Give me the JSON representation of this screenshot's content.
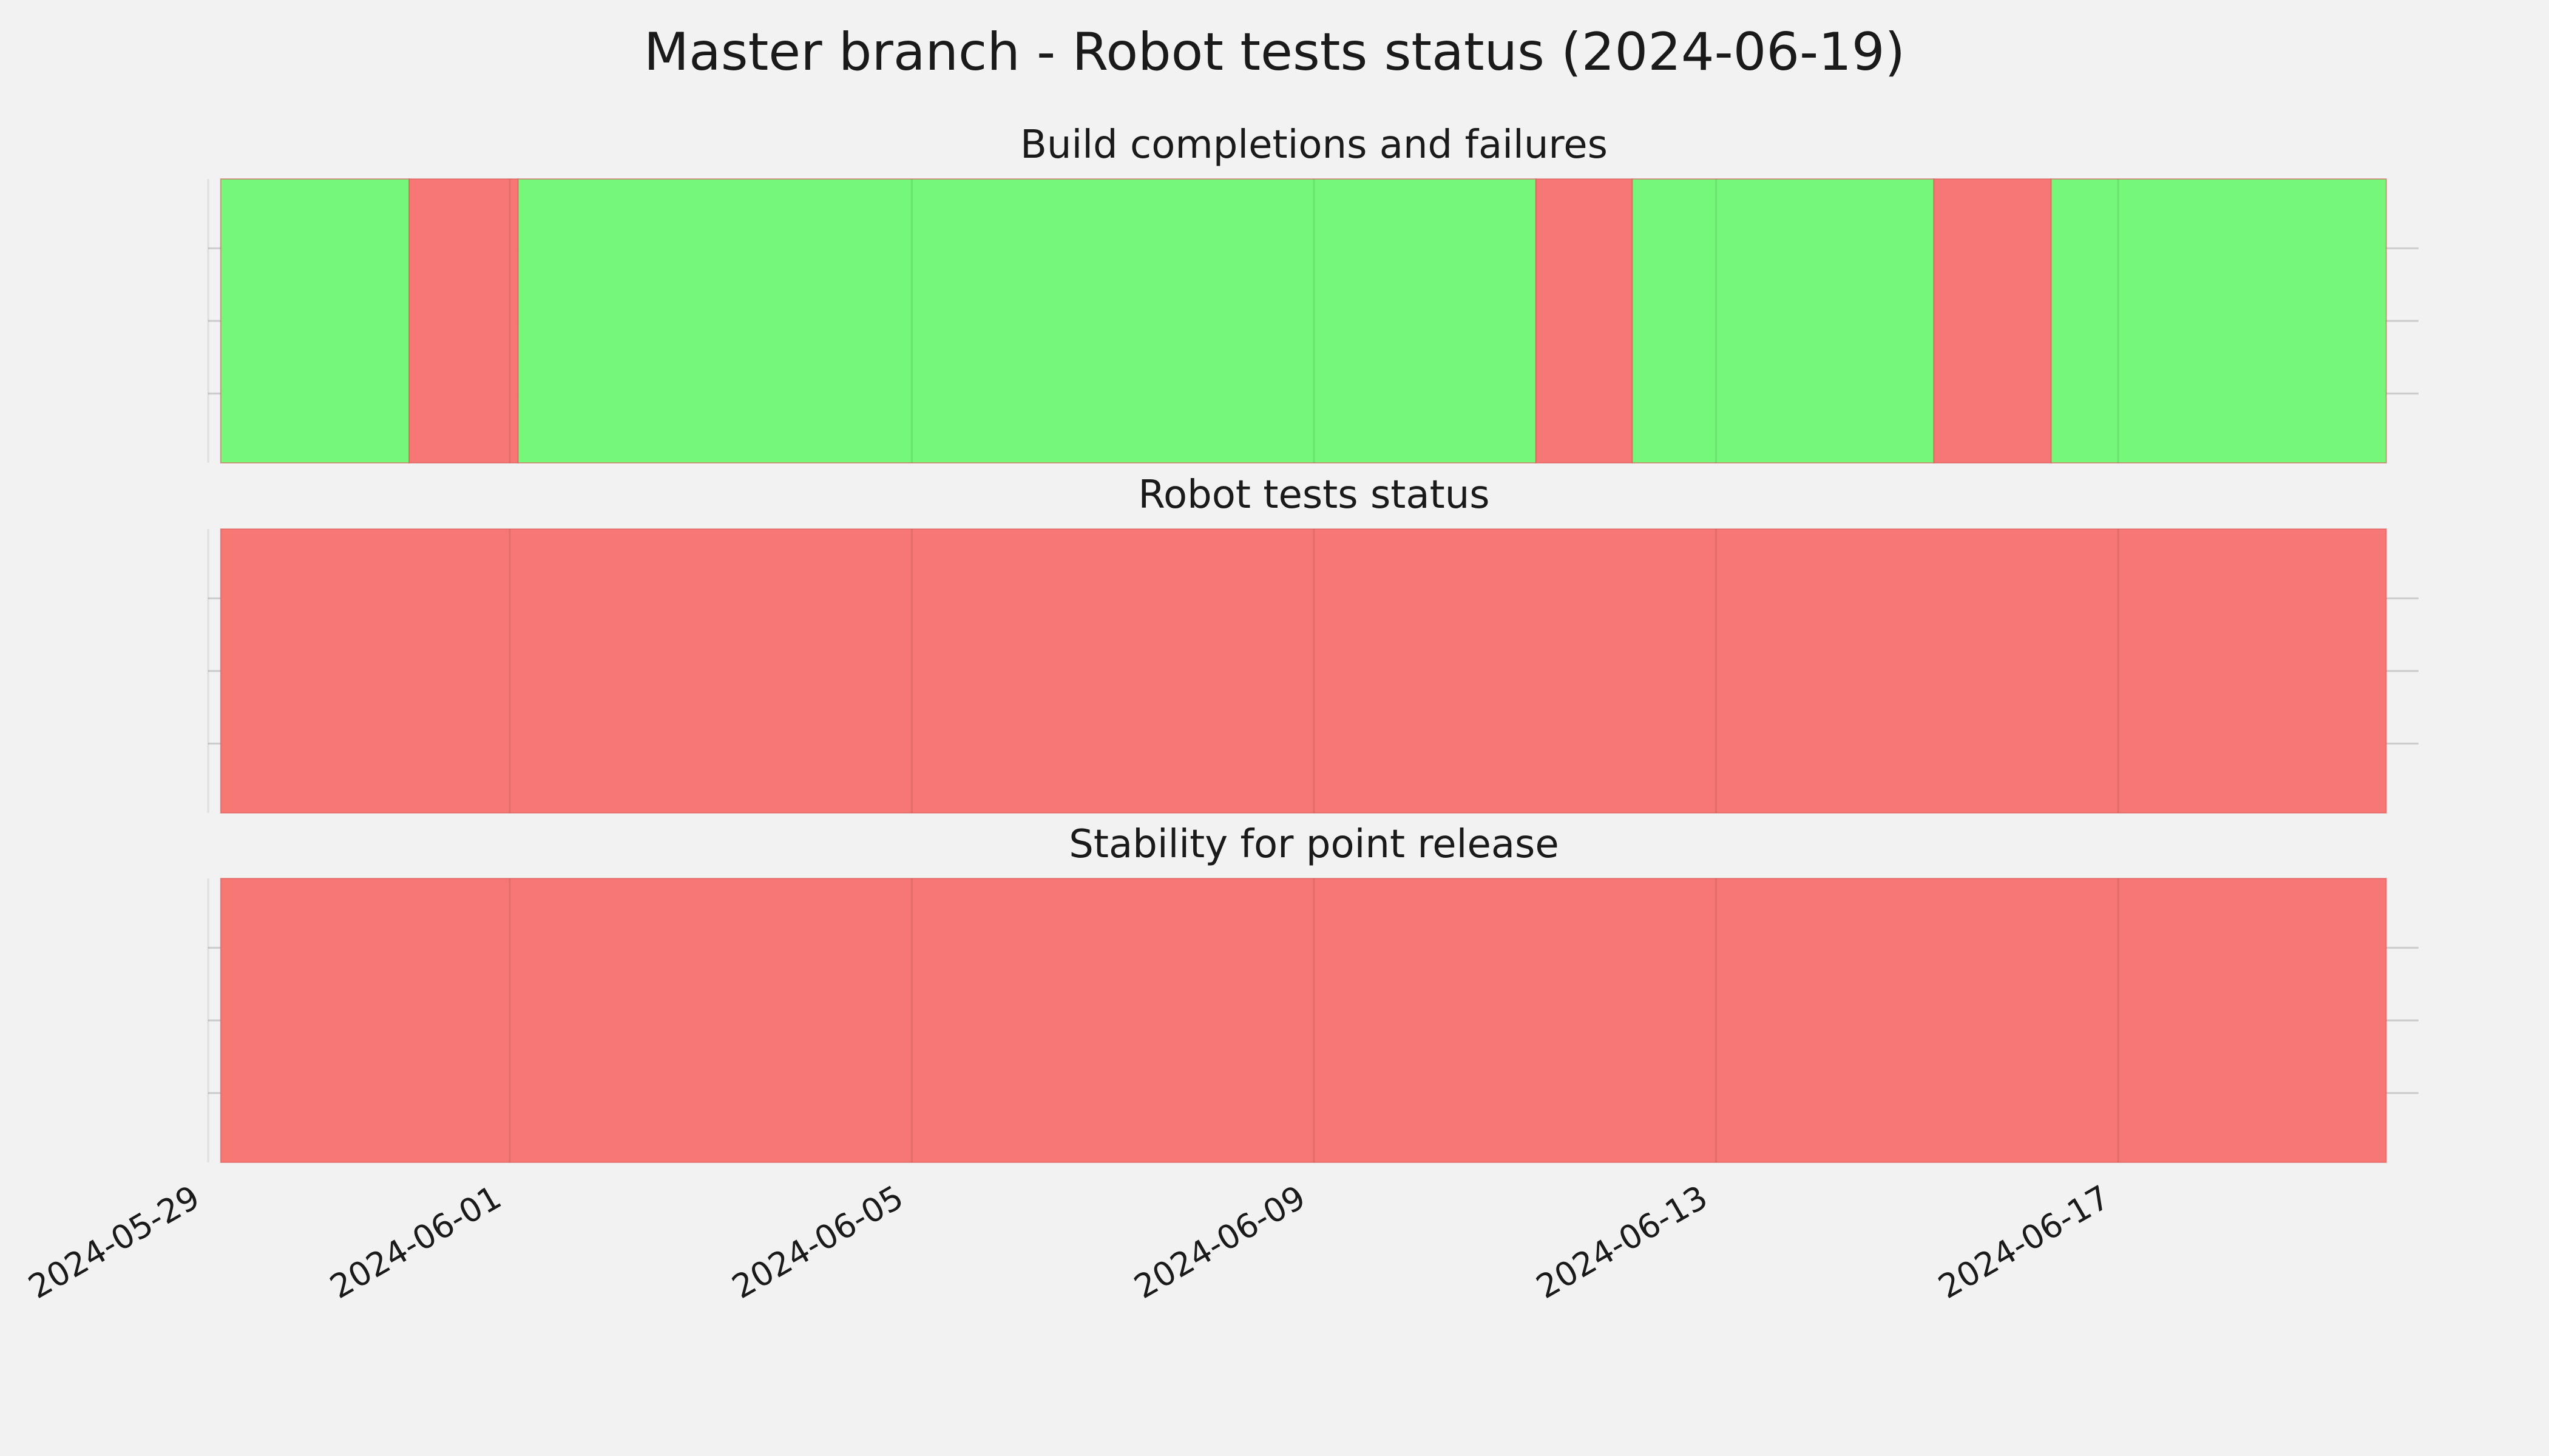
{
  "chart_data": {
    "type": "bar",
    "title": "Master branch - Robot tests status (2024-06-19)",
    "xlim": [
      "2024-05-29",
      "2024-06-20"
    ],
    "x_ticks": [
      "2024-05-29",
      "2024-06-01",
      "2024-06-05",
      "2024-06-09",
      "2024-06-13",
      "2024-06-17"
    ],
    "grid": true,
    "colors": {
      "pass": "#75f779",
      "fail": "#f77775",
      "background": "#f2f2f2",
      "grid": "#cbcbcb"
    },
    "panels": [
      {
        "title": "Build completions and failures",
        "segments": [
          {
            "start": "2024-05-29T03:00",
            "end": "2024-05-31T00:00",
            "status": "pass"
          },
          {
            "start": "2024-05-31T00:00",
            "end": "2024-06-01T02:00",
            "status": "fail"
          },
          {
            "start": "2024-06-01T02:00",
            "end": "2024-06-11T05:00",
            "status": "pass"
          },
          {
            "start": "2024-06-11T05:00",
            "end": "2024-06-12T04:00",
            "status": "fail"
          },
          {
            "start": "2024-06-12T04:00",
            "end": "2024-06-15T04:00",
            "status": "pass"
          },
          {
            "start": "2024-06-15T04:00",
            "end": "2024-06-16T08:00",
            "status": "fail"
          },
          {
            "start": "2024-06-16T08:00",
            "end": "2024-06-19T16:00",
            "status": "pass"
          }
        ]
      },
      {
        "title": "Robot tests status",
        "segments": [
          {
            "start": "2024-05-29T03:00",
            "end": "2024-06-19T16:00",
            "status": "fail"
          }
        ]
      },
      {
        "title": "Stability for point release",
        "segments": [
          {
            "start": "2024-05-29T03:00",
            "end": "2024-06-19T16:00",
            "status": "fail"
          }
        ]
      }
    ]
  }
}
